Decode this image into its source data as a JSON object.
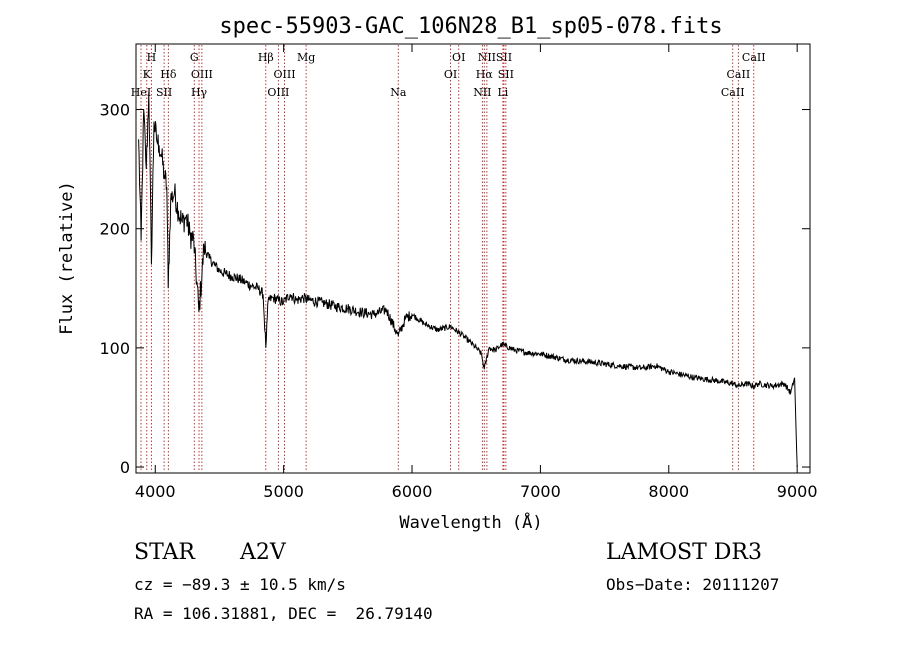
{
  "colors": {
    "background": "#ffffff",
    "spectrum": "#000000",
    "line_marker": "#b22222",
    "axis": "#000000"
  },
  "chart_data": {
    "type": "line",
    "title": "spec-55903-GAC_106N28_B1_sp05-078.fits",
    "xlabel": "Wavelength (Å)",
    "ylabel": "Flux (relative)",
    "xlim": [
      3850,
      9100
    ],
    "ylim": [
      -5,
      355
    ],
    "x_ticks": [
      4000,
      5000,
      6000,
      7000,
      8000,
      9000
    ],
    "y_ticks": [
      0,
      100,
      200,
      300
    ],
    "series": [
      {
        "name": "spectrum",
        "x": [
          3870,
          3890,
          3910,
          3930,
          3950,
          3970,
          3990,
          4010,
          4030,
          4050,
          4070,
          4090,
          4101,
          4120,
          4150,
          4180,
          4210,
          4240,
          4270,
          4300,
          4340,
          4380,
          4420,
          4460,
          4500,
          4550,
          4600,
          4650,
          4700,
          4750,
          4800,
          4840,
          4861,
          4880,
          4920,
          4960,
          5000,
          5050,
          5100,
          5150,
          5200,
          5300,
          5400,
          5500,
          5600,
          5700,
          5800,
          5893,
          5950,
          6000,
          6100,
          6200,
          6300,
          6400,
          6450,
          6500,
          6540,
          6563,
          6600,
          6650,
          6700,
          6800,
          6900,
          7000,
          7200,
          7400,
          7600,
          7800,
          7900,
          8000,
          8200,
          8400,
          8500,
          8542,
          8600,
          8662,
          8700,
          8800,
          8900,
          8950,
          8980,
          9000
        ],
        "values": [
          275,
          190,
          300,
          250,
          315,
          170,
          290,
          275,
          270,
          260,
          245,
          235,
          150,
          225,
          230,
          215,
          205,
          210,
          195,
          190,
          130,
          185,
          175,
          170,
          165,
          162,
          160,
          158,
          155,
          152,
          150,
          145,
          100,
          140,
          142,
          140,
          138,
          145,
          140,
          142,
          140,
          138,
          135,
          133,
          130,
          128,
          132,
          110,
          125,
          128,
          120,
          115,
          118,
          110,
          105,
          100,
          95,
          82,
          100,
          98,
          103,
          98,
          96,
          95,
          90,
          88,
          85,
          83,
          85,
          80,
          75,
          72,
          70,
          68,
          70,
          68,
          70,
          68,
          70,
          62,
          75,
          0
        ]
      }
    ],
    "line_markers": [
      {
        "label": "H",
        "wavelength": 3970,
        "row": 1
      },
      {
        "label": "K",
        "wavelength": 3934,
        "row": 2
      },
      {
        "label": "HeI",
        "wavelength": 3889,
        "row": 3
      },
      {
        "label": "SII",
        "wavelength": 4069,
        "row": 3
      },
      {
        "label": "Hδ",
        "wavelength": 4102,
        "row": 2
      },
      {
        "label": "G",
        "wavelength": 4304,
        "row": 1
      },
      {
        "label": "OIII",
        "wavelength": 4363,
        "row": 2
      },
      {
        "label": "Hγ",
        "wavelength": 4341,
        "row": 3
      },
      {
        "label": "Hβ",
        "wavelength": 4861,
        "row": 1
      },
      {
        "label": "OIII",
        "wavelength": 5007,
        "row": 2
      },
      {
        "label": "OIII",
        "wavelength": 4959,
        "row": 3
      },
      {
        "label": "Mg",
        "wavelength": 5175,
        "row": 1
      },
      {
        "label": "Na",
        "wavelength": 5893,
        "row": 3
      },
      {
        "label": "OI",
        "wavelength": 6364,
        "row": 1
      },
      {
        "label": "OI",
        "wavelength": 6300,
        "row": 2
      },
      {
        "label": "NII",
        "wavelength": 6583,
        "row": 1
      },
      {
        "label": "SII",
        "wavelength": 6716,
        "row": 1
      },
      {
        "label": "Hα",
        "wavelength": 6563,
        "row": 2
      },
      {
        "label": "SII",
        "wavelength": 6731,
        "row": 2
      },
      {
        "label": "NII",
        "wavelength": 6548,
        "row": 3
      },
      {
        "label": "Li",
        "wavelength": 6708,
        "row": 3
      },
      {
        "label": "CaII",
        "wavelength": 8662,
        "row": 1
      },
      {
        "label": "CaII",
        "wavelength": 8542,
        "row": 2
      },
      {
        "label": "CaII",
        "wavelength": 8498,
        "row": 3
      }
    ]
  },
  "info": {
    "class_label": "STAR",
    "subclass": "A2V",
    "survey": "LAMOST DR3",
    "cz": "cz = −89.3 ± 10.5 km/s",
    "obs_date": "Obs−Date: 20111207",
    "coords": "RA = 106.31881, DEC =  26.79140"
  }
}
